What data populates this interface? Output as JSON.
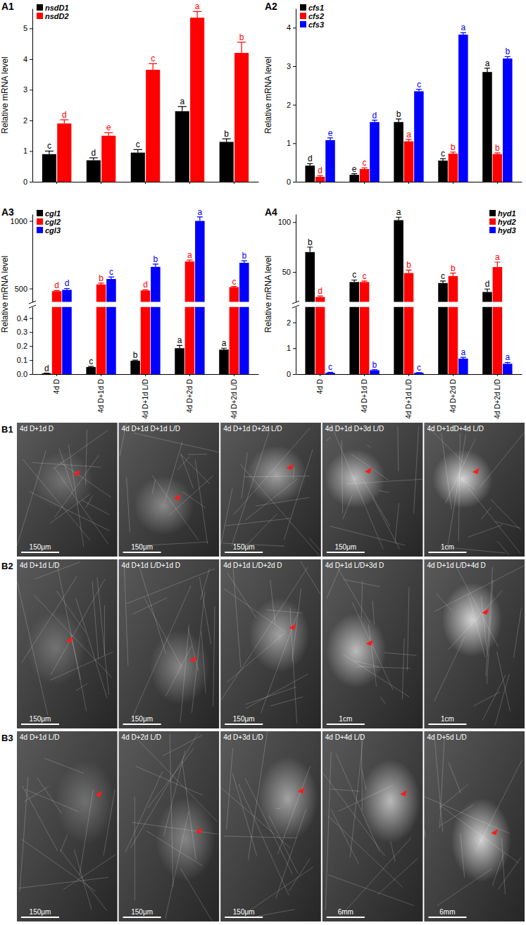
{
  "chart_data": [
    {
      "title": "A1",
      "type": "bar",
      "y_label": "Relative mRNA level",
      "categories": [
        "4d D",
        "4d D+1d D",
        "4d D+1d L/D",
        "4d D+2d D",
        "4d D+2d L/D"
      ],
      "ylim": [
        0,
        5.65
      ],
      "yticks": [
        0,
        1,
        2,
        3,
        4,
        5
      ],
      "legend": "top-left",
      "tick_labels": "y",
      "series": [
        {
          "name": "nsdD1",
          "color": "#000000",
          "values": [
            0.9,
            0.7,
            0.95,
            2.3,
            1.3
          ],
          "errors": [
            0.1,
            0.08,
            0.1,
            0.15,
            0.1
          ],
          "letters": [
            "c",
            "d",
            "c",
            "a",
            "b"
          ]
        },
        {
          "name": "nsdD2",
          "color": "#ff0000",
          "values": [
            1.9,
            1.5,
            3.65,
            5.35,
            4.2
          ],
          "errors": [
            0.12,
            0.1,
            0.2,
            0.2,
            0.35
          ],
          "letters": [
            "d",
            "e",
            "c",
            "a",
            "b"
          ]
        }
      ]
    },
    {
      "title": "A2",
      "type": "bar",
      "y_label": "Relative mRNA level",
      "categories": [
        "4d D",
        "4d D+1d D",
        "4d D+1d L/D",
        "4d D+2d D",
        "4d D+2d L/D"
      ],
      "ylim": [
        0,
        4.5
      ],
      "yticks": [
        0,
        1,
        2,
        3,
        4
      ],
      "legend": "top-left",
      "tick_labels": "y",
      "series": [
        {
          "name": "cfs1",
          "color": "#000000",
          "values": [
            0.42,
            0.18,
            1.55,
            0.55,
            2.85
          ],
          "errors": [
            0.05,
            0.03,
            0.08,
            0.05,
            0.1
          ],
          "letters": [
            "d",
            "e",
            "b",
            "c",
            "a"
          ]
        },
        {
          "name": "cfs2",
          "color": "#ff0000",
          "values": [
            0.13,
            0.33,
            1.05,
            0.73,
            0.72
          ],
          "errors": [
            0.03,
            0.03,
            0.05,
            0.04,
            0.03
          ],
          "letters": [
            "d",
            "c",
            "a",
            "b",
            "b"
          ]
        },
        {
          "name": "cfs3",
          "color": "#0000ff",
          "values": [
            1.08,
            1.55,
            2.35,
            3.82,
            3.2
          ],
          "errors": [
            0.06,
            0.05,
            0.05,
            0.05,
            0.05
          ],
          "letters": [
            "e",
            "d",
            "c",
            "a",
            "b"
          ]
        }
      ]
    },
    {
      "title": "A3",
      "type": "bar",
      "y_label": "Relative mRNA level",
      "categories": [
        "4d D",
        "4d D+1d D",
        "4d D+1d L/D",
        "4d D+2d D",
        "4d D+2d L/D"
      ],
      "ylim": [
        0,
        1050
      ],
      "axis_break": [
        0.48,
        400
      ],
      "yticks": [
        {
          "value": 0,
          "label": "0.0"
        },
        0.1,
        0.2,
        0.3,
        0.4,
        500,
        1000
      ],
      "legend": "top-left",
      "series": [
        {
          "name": "cgl1",
          "color": "#000000",
          "values": [
            0.005,
            0.05,
            0.095,
            0.185,
            0.175
          ],
          "errors": [
            0.002,
            0.005,
            0.005,
            0.02,
            0.01
          ],
          "letters": [
            "d",
            "c",
            "b",
            "a",
            "a"
          ]
        },
        {
          "name": "cgl2",
          "color": "#ff0000",
          "values": [
            480,
            530,
            485,
            700,
            510
          ],
          "errors": [
            5,
            10,
            5,
            10,
            5
          ],
          "letters": [
            "d",
            "b",
            "d",
            "a",
            "c"
          ]
        },
        {
          "name": "cgl3",
          "color": "#0000ff",
          "values": [
            490,
            570,
            660,
            1000,
            690
          ],
          "errors": [
            10,
            15,
            20,
            30,
            15
          ],
          "letters": [
            "d",
            "c",
            "b",
            "a",
            "b"
          ]
        }
      ]
    },
    {
      "title": "A4",
      "type": "bar",
      "y_label": "Relative mRNA level",
      "categories": [
        "4d D",
        "4d D+1d D",
        "4d D+1d L/D",
        "4d D+2d D",
        "4d D+2d L/D"
      ],
      "ylim": [
        0,
        108
      ],
      "axis_break": [
        2.6,
        20
      ],
      "yticks": [
        0,
        1,
        2,
        50,
        100
      ],
      "legend": "top-right",
      "series": [
        {
          "name": "hyd1",
          "color": "#000000",
          "values": [
            70,
            40,
            102,
            39,
            30
          ],
          "errors": [
            5,
            2,
            3,
            2,
            3
          ],
          "letters": [
            "b",
            "c",
            "a",
            "c",
            "d"
          ]
        },
        {
          "name": "hyd2",
          "color": "#ff0000",
          "values": [
            25,
            40,
            49,
            46,
            55
          ],
          "errors": [
            1,
            1,
            3,
            3,
            5
          ],
          "letters": [
            "d",
            "c",
            "b",
            "b",
            "a"
          ]
        },
        {
          "name": "hyd3",
          "color": "#0000ff",
          "values": [
            0.05,
            0.15,
            0.05,
            0.6,
            0.4
          ],
          "errors": [
            0.02,
            0.02,
            0.01,
            0.05,
            0.05
          ],
          "letters": [
            "c",
            "b",
            "c",
            "a",
            "a"
          ]
        }
      ]
    }
  ],
  "photo_rows": [
    {
      "label": "B1",
      "panels": [
        {
          "caption": "4d D+1d D",
          "scale_bar": "150μm"
        },
        {
          "caption": "4d D+1d D+1d L/D",
          "scale_bar": "150μm"
        },
        {
          "caption": "4d D+1d D+2d L/D",
          "scale_bar": "150μm"
        },
        {
          "caption": "4d D+1d D+3d L/D",
          "scale_bar": "150μm"
        },
        {
          "caption": "4d D+1dD+4d L/D",
          "scale_bar": "1cm"
        }
      ]
    },
    {
      "label": "B2",
      "panels": [
        {
          "caption": "4d D+1d L/D",
          "scale_bar": "150μm"
        },
        {
          "caption": "4d D+1d L/D+1d D",
          "scale_bar": "150μm"
        },
        {
          "caption": "4d D+1d L/D+2d D",
          "scale_bar": "150μm"
        },
        {
          "caption": "4d D+1d L/D+3d D",
          "scale_bar": "1cm"
        },
        {
          "caption": "4d D+1d L/D+4d D",
          "scale_bar": "1cm"
        }
      ]
    },
    {
      "label": "B3",
      "panels": [
        {
          "caption": "4d D+1d L/D",
          "scale_bar": "150μm"
        },
        {
          "caption": "4d D+2d L/D",
          "scale_bar": "150μm"
        },
        {
          "caption": "4d D+3d L/D",
          "scale_bar": "150μm"
        },
        {
          "caption": "4d D+4d L/D",
          "scale_bar": "6mm"
        },
        {
          "caption": "4d D+5d L/D",
          "scale_bar": "6mm"
        }
      ]
    }
  ]
}
